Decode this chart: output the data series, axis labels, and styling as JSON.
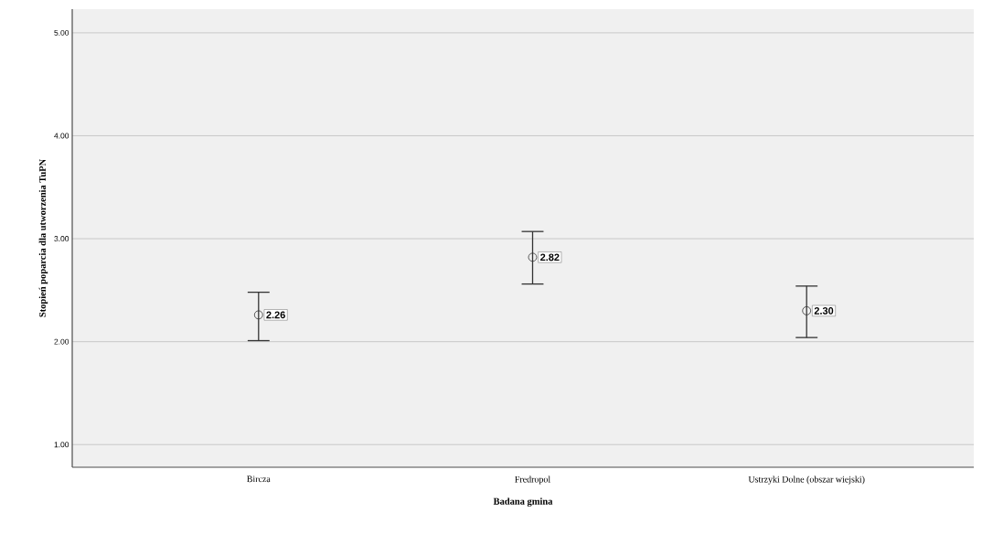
{
  "chart_data": {
    "type": "scatter",
    "xlabel": "Badana gmina",
    "ylabel": "Stopień poparcia dla utworzenia TuPN",
    "categories": [
      "Bircza",
      "Fredropol",
      "Ustrzyki Dolne (obszar wiejski)"
    ],
    "values": [
      2.26,
      2.82,
      2.3
    ],
    "errors": [
      [
        2.01,
        2.48
      ],
      [
        2.56,
        3.07
      ],
      [
        2.04,
        2.54
      ]
    ],
    "value_labels": [
      "2.26",
      "2.82",
      "2.30"
    ],
    "color": "#333333",
    "marker": "circle",
    "grid": "y",
    "ylim": [
      0.78,
      5.23
    ],
    "yticks": [
      {
        "value": 1,
        "label": "1.00"
      },
      {
        "value": 2,
        "label": "2.00"
      },
      {
        "value": 3,
        "label": "3.00"
      },
      {
        "value": 4,
        "label": "4.00"
      },
      {
        "value": 5,
        "label": "5.00"
      }
    ]
  }
}
